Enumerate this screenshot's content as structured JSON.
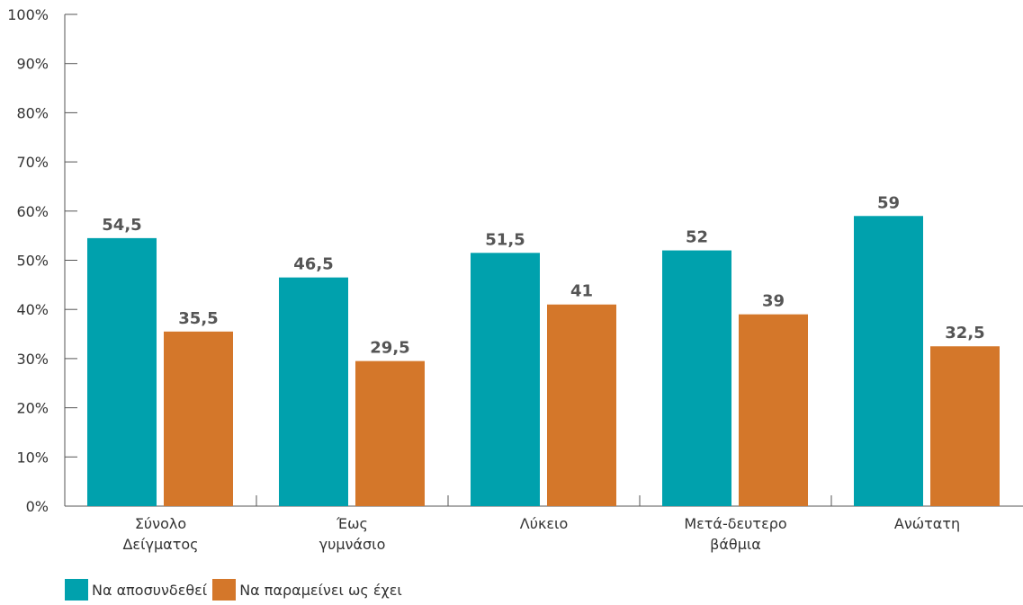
{
  "chart_data": {
    "type": "bar",
    "categories": [
      [
        "Σύνολο",
        "Δείγματος"
      ],
      [
        "Έως",
        "γυμνάσιο"
      ],
      [
        "Λύκειο"
      ],
      [
        "Μετά-δευτερο",
        "βάθμια"
      ],
      [
        "Ανώτατη"
      ]
    ],
    "series": [
      {
        "name": "Να αποσυνδεθεί",
        "values": [
          54.5,
          46.5,
          51.5,
          52,
          59
        ],
        "labels": [
          "54,5",
          "46,5",
          "51,5",
          "52",
          "59"
        ],
        "color": "#00A1AD"
      },
      {
        "name": "Να παραμείνει ως έχει",
        "values": [
          35.5,
          29.5,
          41,
          39,
          32.5
        ],
        "labels": [
          "35,5",
          "29,5",
          "41",
          "39",
          "32,5"
        ],
        "color": "#D4772A"
      }
    ],
    "yticks": [
      "0%",
      "10%",
      "20%",
      "30%",
      "40%",
      "50%",
      "60%",
      "70%",
      "80%",
      "90%",
      "100%"
    ],
    "ylim": [
      0,
      100
    ],
    "grid": false,
    "legend_position": "bottom-left",
    "title": "",
    "xlabel": "",
    "ylabel": ""
  }
}
